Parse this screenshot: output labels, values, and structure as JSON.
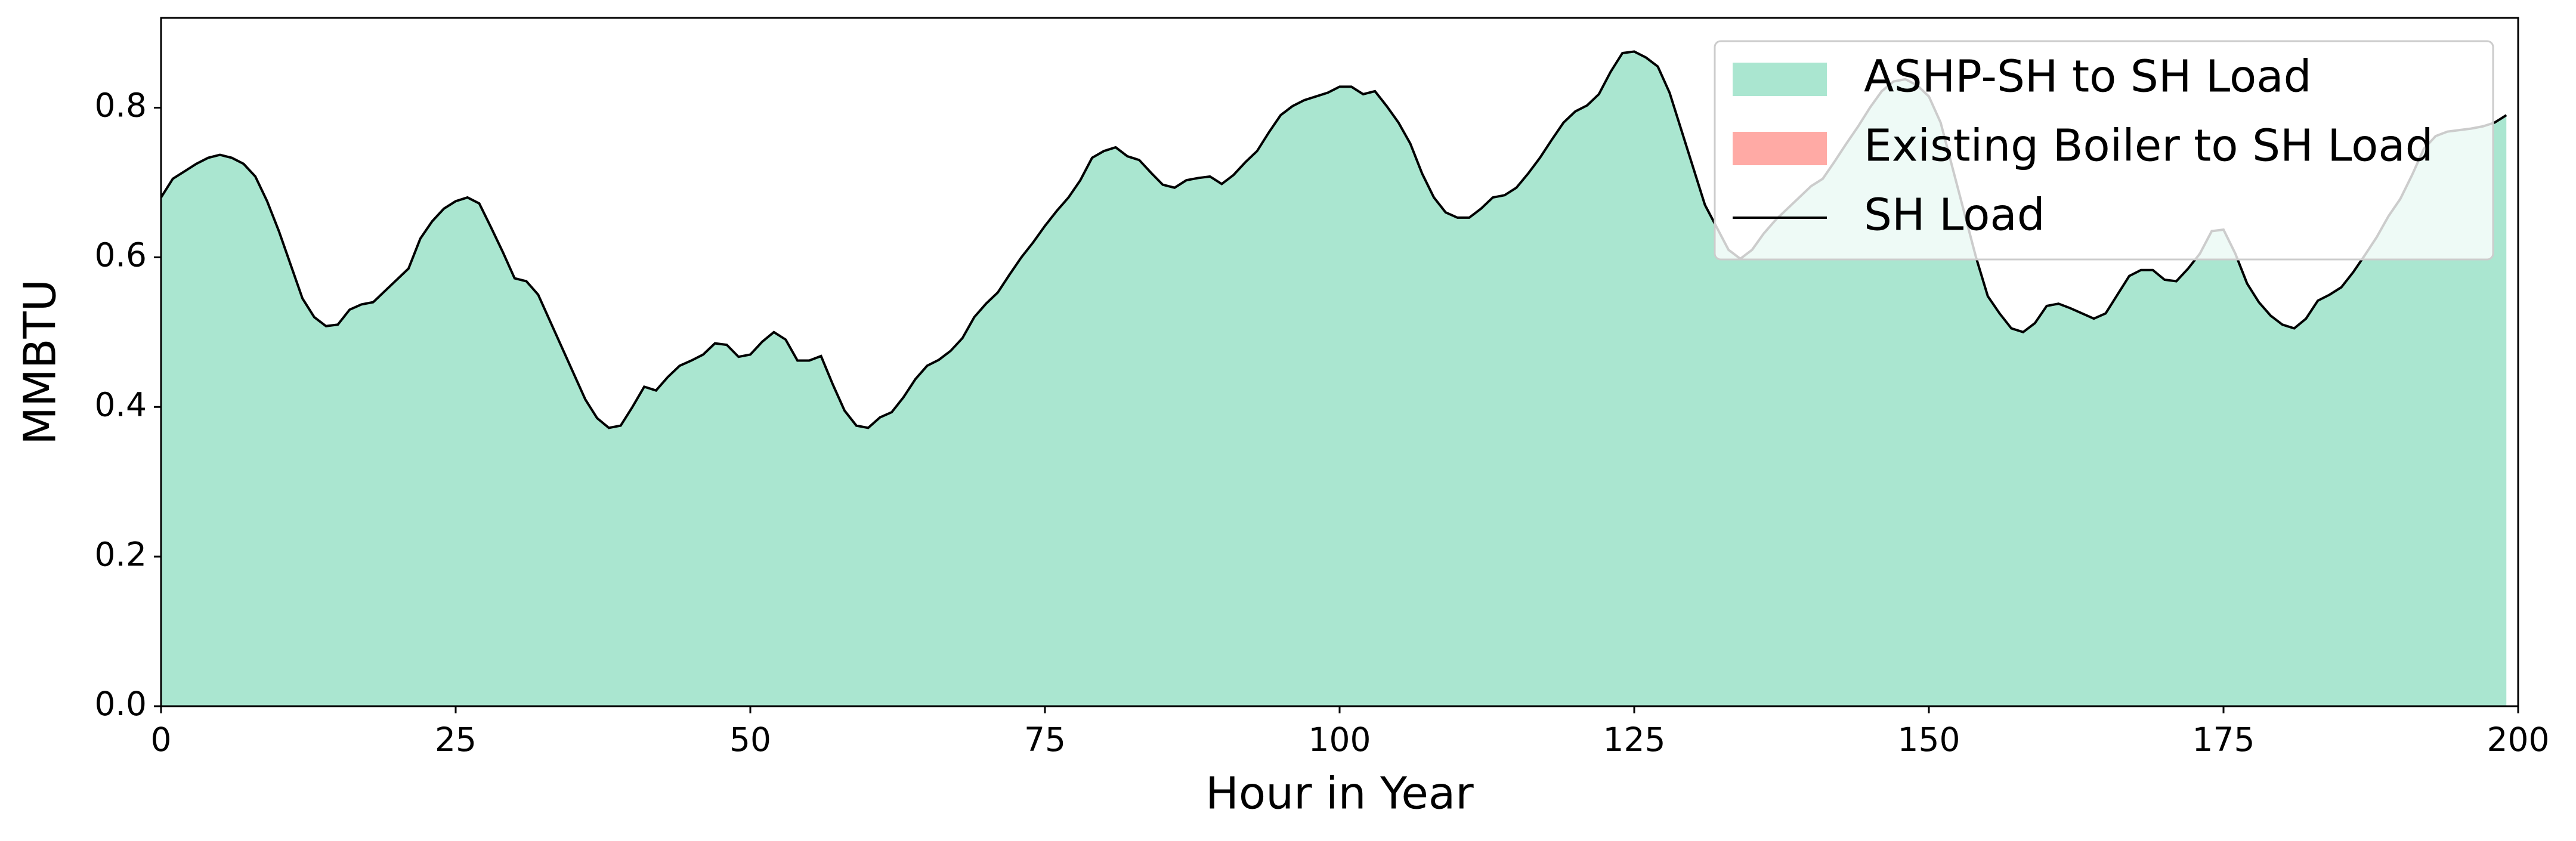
{
  "chart_data": {
    "type": "area",
    "xlabel": "Hour in Year",
    "ylabel": "MMBTU",
    "xlim": [
      0,
      200
    ],
    "ylim": [
      0,
      0.92
    ],
    "xticks": [
      0,
      25,
      50,
      75,
      100,
      125,
      150,
      175,
      200
    ],
    "yticks": [
      {
        "value": 0,
        "label": "0.0"
      },
      0.2,
      0.4,
      0.6,
      0.8
    ],
    "legend": "upper right",
    "x": [
      0,
      1,
      2,
      3,
      4,
      5,
      6,
      7,
      8,
      9,
      10,
      11,
      12,
      13,
      14,
      15,
      16,
      17,
      18,
      19,
      20,
      21,
      22,
      23,
      24,
      25,
      26,
      27,
      28,
      29,
      30,
      31,
      32,
      33,
      34,
      35,
      36,
      37,
      38,
      39,
      40,
      41,
      42,
      43,
      44,
      45,
      46,
      47,
      48,
      49,
      50,
      51,
      52,
      53,
      54,
      55,
      56,
      57,
      58,
      59,
      60,
      61,
      62,
      63,
      64,
      65,
      66,
      67,
      68,
      69,
      70,
      71,
      72,
      73,
      74,
      75,
      76,
      77,
      78,
      79,
      80,
      81,
      82,
      83,
      84,
      85,
      86,
      87,
      88,
      89,
      90,
      91,
      92,
      93,
      94,
      95,
      96,
      97,
      98,
      99,
      100,
      101,
      102,
      103,
      104,
      105,
      106,
      107,
      108,
      109,
      110,
      111,
      112,
      113,
      114,
      115,
      116,
      117,
      118,
      119,
      120,
      121,
      122,
      123,
      124,
      125,
      126,
      127,
      128,
      129,
      130,
      131,
      132,
      133,
      134,
      135,
      136,
      137,
      138,
      139,
      140,
      141,
      142,
      143,
      144,
      145,
      146,
      147,
      148,
      149,
      150,
      151,
      152,
      153,
      154,
      155,
      156,
      157,
      158,
      159,
      160,
      161,
      162,
      163,
      164,
      165,
      166,
      167,
      168,
      169,
      170,
      171,
      172,
      173,
      174,
      175,
      176,
      177,
      178,
      179,
      180,
      181,
      182,
      183,
      184,
      185,
      186,
      187,
      188,
      189,
      190,
      191,
      192,
      193,
      194,
      195,
      196,
      197,
      198,
      199
    ],
    "series": [
      {
        "name": "ASHP-SH to SH Load",
        "style": "area",
        "color": "#aae6d0",
        "values": [
          0.68,
          0.705,
          0.715,
          0.725,
          0.733,
          0.737,
          0.733,
          0.725,
          0.708,
          0.675,
          0.635,
          0.59,
          0.545,
          0.52,
          0.508,
          0.51,
          0.53,
          0.537,
          0.54,
          0.555,
          0.57,
          0.585,
          0.625,
          0.648,
          0.665,
          0.675,
          0.68,
          0.672,
          0.64,
          0.607,
          0.572,
          0.568,
          0.55,
          0.515,
          0.48,
          0.445,
          0.41,
          0.385,
          0.372,
          0.375,
          0.4,
          0.427,
          0.422,
          0.44,
          0.455,
          0.462,
          0.47,
          0.485,
          0.483,
          0.467,
          0.47,
          0.487,
          0.5,
          0.49,
          0.462,
          0.462,
          0.468,
          0.43,
          0.395,
          0.375,
          0.372,
          0.386,
          0.393,
          0.413,
          0.437,
          0.455,
          0.463,
          0.475,
          0.492,
          0.52,
          0.538,
          0.553,
          0.577,
          0.6,
          0.62,
          0.642,
          0.662,
          0.68,
          0.703,
          0.733,
          0.742,
          0.747,
          0.735,
          0.73,
          0.713,
          0.697,
          0.693,
          0.703,
          0.706,
          0.708,
          0.698,
          0.71,
          0.727,
          0.742,
          0.767,
          0.79,
          0.802,
          0.81,
          0.815,
          0.82,
          0.828,
          0.828,
          0.818,
          0.822,
          0.802,
          0.78,
          0.752,
          0.712,
          0.68,
          0.66,
          0.653,
          0.653,
          0.665,
          0.68,
          0.683,
          0.693,
          0.712,
          0.733,
          0.757,
          0.78,
          0.795,
          0.803,
          0.818,
          0.848,
          0.873,
          0.875,
          0.867,
          0.855,
          0.82,
          0.77,
          0.72,
          0.67,
          0.64,
          0.61,
          0.598,
          0.61,
          0.632,
          0.65,
          0.665,
          0.68,
          0.695,
          0.705,
          0.728,
          0.752,
          0.775,
          0.8,
          0.822,
          0.835,
          0.838,
          0.83,
          0.815,
          0.78,
          0.72,
          0.66,
          0.6,
          0.548,
          0.525,
          0.505,
          0.5,
          0.512,
          0.535,
          0.538,
          0.532,
          0.525,
          0.518,
          0.525,
          0.55,
          0.575,
          0.583,
          0.583,
          0.57,
          0.568,
          0.585,
          0.605,
          0.635,
          0.637,
          0.605,
          0.565,
          0.54,
          0.522,
          0.51,
          0.505,
          0.518,
          0.542,
          0.55,
          0.56,
          0.58,
          0.603,
          0.627,
          0.655,
          0.678,
          0.71,
          0.745,
          0.762,
          0.768,
          0.77,
          0.772,
          0.775,
          0.78,
          0.79
        ]
      },
      {
        "name": "Existing Boiler to SH Load",
        "style": "area",
        "color": "#ffaaa5",
        "values": [
          0,
          0,
          0,
          0,
          0,
          0,
          0,
          0,
          0,
          0,
          0,
          0,
          0,
          0,
          0,
          0,
          0,
          0,
          0,
          0,
          0,
          0,
          0,
          0,
          0,
          0,
          0,
          0,
          0,
          0,
          0,
          0,
          0,
          0,
          0,
          0,
          0,
          0,
          0,
          0,
          0,
          0,
          0,
          0,
          0,
          0,
          0,
          0,
          0,
          0,
          0,
          0,
          0,
          0,
          0,
          0,
          0,
          0,
          0,
          0,
          0,
          0,
          0,
          0,
          0,
          0,
          0,
          0,
          0,
          0,
          0,
          0,
          0,
          0,
          0,
          0,
          0,
          0,
          0,
          0,
          0,
          0,
          0,
          0,
          0,
          0,
          0,
          0,
          0,
          0,
          0,
          0,
          0,
          0,
          0,
          0,
          0,
          0,
          0,
          0,
          0,
          0,
          0,
          0,
          0,
          0,
          0,
          0,
          0,
          0,
          0,
          0,
          0,
          0,
          0,
          0,
          0,
          0,
          0,
          0,
          0,
          0,
          0,
          0,
          0,
          0,
          0,
          0,
          0,
          0,
          0,
          0,
          0,
          0,
          0,
          0,
          0,
          0,
          0,
          0,
          0,
          0,
          0,
          0,
          0,
          0,
          0,
          0,
          0,
          0,
          0,
          0,
          0,
          0,
          0,
          0,
          0,
          0,
          0,
          0,
          0,
          0,
          0,
          0,
          0,
          0,
          0,
          0,
          0,
          0,
          0,
          0,
          0,
          0,
          0,
          0,
          0,
          0,
          0,
          0,
          0,
          0,
          0,
          0,
          0,
          0,
          0,
          0,
          0,
          0,
          0,
          0,
          0,
          0,
          0,
          0,
          0,
          0,
          0,
          0
        ]
      },
      {
        "name": "SH Load",
        "style": "line",
        "color": "#000000",
        "values": [
          0.68,
          0.705,
          0.715,
          0.725,
          0.733,
          0.737,
          0.733,
          0.725,
          0.708,
          0.675,
          0.635,
          0.59,
          0.545,
          0.52,
          0.508,
          0.51,
          0.53,
          0.537,
          0.54,
          0.555,
          0.57,
          0.585,
          0.625,
          0.648,
          0.665,
          0.675,
          0.68,
          0.672,
          0.64,
          0.607,
          0.572,
          0.568,
          0.55,
          0.515,
          0.48,
          0.445,
          0.41,
          0.385,
          0.372,
          0.375,
          0.4,
          0.427,
          0.422,
          0.44,
          0.455,
          0.462,
          0.47,
          0.485,
          0.483,
          0.467,
          0.47,
          0.487,
          0.5,
          0.49,
          0.462,
          0.462,
          0.468,
          0.43,
          0.395,
          0.375,
          0.372,
          0.386,
          0.393,
          0.413,
          0.437,
          0.455,
          0.463,
          0.475,
          0.492,
          0.52,
          0.538,
          0.553,
          0.577,
          0.6,
          0.62,
          0.642,
          0.662,
          0.68,
          0.703,
          0.733,
          0.742,
          0.747,
          0.735,
          0.73,
          0.713,
          0.697,
          0.693,
          0.703,
          0.706,
          0.708,
          0.698,
          0.71,
          0.727,
          0.742,
          0.767,
          0.79,
          0.802,
          0.81,
          0.815,
          0.82,
          0.828,
          0.828,
          0.818,
          0.822,
          0.802,
          0.78,
          0.752,
          0.712,
          0.68,
          0.66,
          0.653,
          0.653,
          0.665,
          0.68,
          0.683,
          0.693,
          0.712,
          0.733,
          0.757,
          0.78,
          0.795,
          0.803,
          0.818,
          0.848,
          0.873,
          0.875,
          0.867,
          0.855,
          0.82,
          0.77,
          0.72,
          0.67,
          0.64,
          0.61,
          0.598,
          0.61,
          0.632,
          0.65,
          0.665,
          0.68,
          0.695,
          0.705,
          0.728,
          0.752,
          0.775,
          0.8,
          0.822,
          0.835,
          0.838,
          0.83,
          0.815,
          0.78,
          0.72,
          0.66,
          0.6,
          0.548,
          0.525,
          0.505,
          0.5,
          0.512,
          0.535,
          0.538,
          0.532,
          0.525,
          0.518,
          0.525,
          0.55,
          0.575,
          0.583,
          0.583,
          0.57,
          0.568,
          0.585,
          0.605,
          0.635,
          0.637,
          0.605,
          0.565,
          0.54,
          0.522,
          0.51,
          0.505,
          0.518,
          0.542,
          0.55,
          0.56,
          0.58,
          0.603,
          0.627,
          0.655,
          0.678,
          0.71,
          0.745,
          0.762,
          0.768,
          0.77,
          0.772,
          0.775,
          0.78,
          0.79
        ]
      }
    ]
  }
}
